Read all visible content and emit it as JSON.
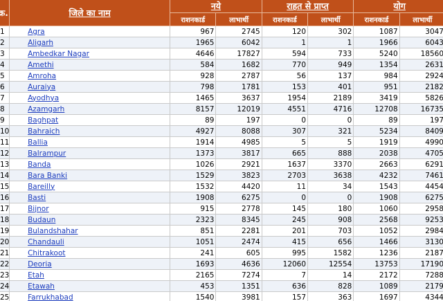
{
  "header": {
    "sn": "क्र.",
    "district": "जिले का नाम",
    "groups": [
      "नये",
      "राहत से प्राप्त",
      "योग"
    ],
    "sub": [
      "राशनकार्ड",
      "लाभार्थी"
    ]
  },
  "rows": [
    [
      "1",
      "Agra",
      "967",
      "2745",
      "120",
      "302",
      "1087",
      "3047"
    ],
    [
      "2",
      "Aligarh",
      "1965",
      "6042",
      "1",
      "1",
      "1966",
      "6043"
    ],
    [
      "3",
      "Ambedkar Nagar",
      "4646",
      "17827",
      "594",
      "733",
      "5240",
      "18560"
    ],
    [
      "4",
      "Amethi",
      "584",
      "1682",
      "770",
      "949",
      "1354",
      "2631"
    ],
    [
      "5",
      "Amroha",
      "928",
      "2787",
      "56",
      "137",
      "984",
      "2924"
    ],
    [
      "6",
      "Auraiya",
      "798",
      "1781",
      "153",
      "401",
      "951",
      "2182"
    ],
    [
      "7",
      "Ayodhya",
      "1465",
      "3637",
      "1954",
      "2189",
      "3419",
      "5826"
    ],
    [
      "8",
      "Azamgarh",
      "8157",
      "12019",
      "4551",
      "4716",
      "12708",
      "16735"
    ],
    [
      "9",
      "Baghpat",
      "89",
      "197",
      "0",
      "0",
      "89",
      "197"
    ],
    [
      "10",
      "Bahraich",
      "4927",
      "8088",
      "307",
      "321",
      "5234",
      "8409"
    ],
    [
      "11",
      "Ballia",
      "1914",
      "4985",
      "5",
      "5",
      "1919",
      "4990"
    ],
    [
      "12",
      "Balrampur",
      "1373",
      "3817",
      "665",
      "888",
      "2038",
      "4705"
    ],
    [
      "13",
      "Banda",
      "1026",
      "2921",
      "1637",
      "3370",
      "2663",
      "6291"
    ],
    [
      "14",
      "Bara Banki",
      "1529",
      "3823",
      "2703",
      "3638",
      "4232",
      "7461"
    ],
    [
      "15",
      "Bareilly",
      "1532",
      "4420",
      "11",
      "34",
      "1543",
      "4454"
    ],
    [
      "16",
      "Basti",
      "1908",
      "6275",
      "0",
      "0",
      "1908",
      "6275"
    ],
    [
      "17",
      "Bijnor",
      "915",
      "2778",
      "145",
      "180",
      "1060",
      "2958"
    ],
    [
      "18",
      "Budaun",
      "2323",
      "8345",
      "245",
      "908",
      "2568",
      "9253"
    ],
    [
      "19",
      "Bulandshahar",
      "851",
      "2281",
      "201",
      "703",
      "1052",
      "2984"
    ],
    [
      "20",
      "Chandauli",
      "1051",
      "2474",
      "415",
      "656",
      "1466",
      "3130"
    ],
    [
      "21",
      "Chitrakoot",
      "241",
      "605",
      "995",
      "1582",
      "1236",
      "2187"
    ],
    [
      "22",
      "Deoria",
      "1693",
      "4636",
      "12060",
      "12554",
      "13753",
      "17190"
    ],
    [
      "23",
      "Etah",
      "2165",
      "7274",
      "7",
      "14",
      "2172",
      "7288"
    ],
    [
      "24",
      "Etawah",
      "453",
      "1351",
      "636",
      "828",
      "1089",
      "2179"
    ],
    [
      "25",
      "Farrukhabad",
      "1540",
      "3981",
      "157",
      "363",
      "1697",
      "4344"
    ]
  ]
}
